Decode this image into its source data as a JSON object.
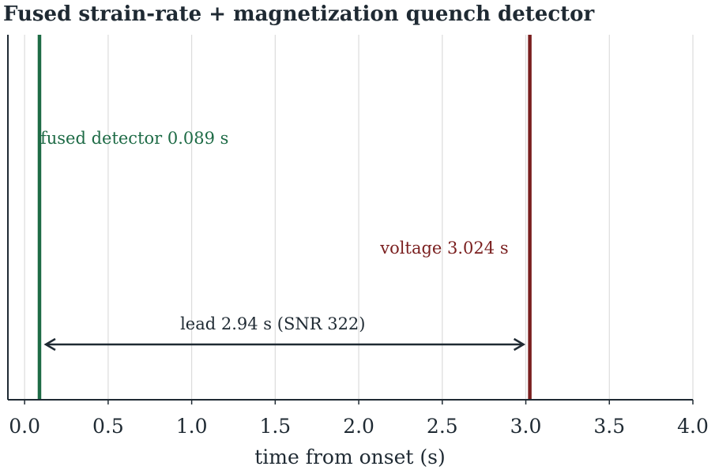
{
  "chart_data": {
    "type": "event-timeline",
    "title": "Fused strain-rate + magnetization quench detector",
    "xlabel": "time from onset (s)",
    "xlim": [
      -0.1,
      4.0
    ],
    "x_ticks": [
      0.0,
      0.5,
      1.0,
      1.5,
      2.0,
      2.5,
      3.0,
      3.5,
      4.0
    ],
    "x_tick_labels": [
      "0.0",
      "0.5",
      "1.0",
      "1.5",
      "2.0",
      "2.5",
      "3.0",
      "3.5",
      "4.0"
    ],
    "grid": "vertical",
    "events": [
      {
        "name": "fused detector",
        "x": 0.089,
        "label": "fused detector 0.089 s",
        "color": "#1e6b46"
      },
      {
        "name": "voltage",
        "x": 3.024,
        "label": "voltage 3.024 s",
        "color": "#7a1f1f"
      }
    ],
    "lead_annotation": {
      "from": 0.089,
      "to": 3.024,
      "label": "lead 2.94 s (SNR 322)",
      "color": "#1f2a33"
    }
  }
}
